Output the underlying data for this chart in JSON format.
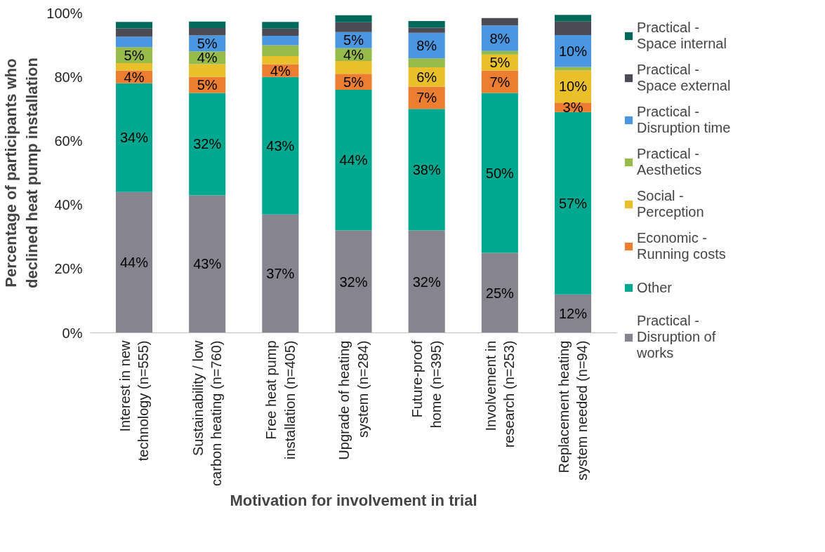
{
  "chart_data": {
    "type": "bar",
    "stacked": true,
    "xlabel": "Motivation for involvement in trial",
    "ylabel": "Percentage of participants who\ndeclined heat pump installation",
    "categories": [
      "Interest in new\ntechnology (n=555)",
      "Sustainability / low\ncarbon heating (n=760)",
      "Free heat pump\ninstallation (n=405)",
      "Upgrade of heating\nsystem (n=284)",
      "Future-proof\nhome (n=395)",
      "Involvement in\nresearch (n=253)",
      "Replacement heating\nsystem needed (n=94)"
    ],
    "ylim": [
      0,
      100
    ],
    "yticks": [
      {
        "value": 0,
        "label": "0%"
      },
      {
        "value": 20,
        "label": "20%"
      },
      {
        "value": 40,
        "label": "40%"
      },
      {
        "value": 60,
        "label": "60%"
      },
      {
        "value": 80,
        "label": "80%"
      },
      {
        "value": 100,
        "label": "100%"
      }
    ],
    "grid": false,
    "legend": "right",
    "series": [
      {
        "name": "Practical -\nDisruption of\nworks",
        "color": "#86858f",
        "values": [
          44,
          43,
          37,
          32,
          32,
          25,
          12
        ],
        "value_labels": [
          "44%",
          "43%",
          "37%",
          "32%",
          "32%",
          "25%",
          "12%"
        ]
      },
      {
        "name": "Other",
        "color": "#00a88f",
        "values": [
          34,
          32,
          43,
          44,
          38,
          50,
          57
        ],
        "value_labels": [
          "34%",
          "32%",
          "43%",
          "44%",
          "38%",
          "50%",
          "57%"
        ]
      },
      {
        "name": "Economic -\nRunning costs",
        "color": "#ed7d31",
        "values": [
          4,
          5,
          4,
          5,
          7,
          7,
          3
        ],
        "value_labels": [
          "4%",
          "5%",
          "4%",
          "5%",
          "7%",
          "7%",
          "3%"
        ]
      },
      {
        "name": "Social -\nPerception",
        "color": "#e9bf2a",
        "values": [
          2.3,
          4,
          2.5,
          4,
          6,
          5,
          10
        ],
        "value_labels": [
          null,
          null,
          null,
          null,
          "6%",
          "5%",
          "10%"
        ]
      },
      {
        "name": "Practical -\nAesthetics",
        "color": "#96bb4a",
        "values": [
          5,
          4,
          3.4,
          4,
          2.8,
          1.1,
          1.1
        ],
        "value_labels": [
          "5%",
          "4%",
          null,
          "4%",
          null,
          null,
          null
        ]
      },
      {
        "name": "Practical -\nDisruption time",
        "color": "#4a96e0",
        "values": [
          3.3,
          5,
          3.0,
          5,
          8,
          8,
          10
        ],
        "value_labels": [
          null,
          "5%",
          null,
          "5%",
          "8%",
          "8%",
          "10%"
        ]
      },
      {
        "name": "Practical -\nSpace external",
        "color": "#4b4a55",
        "values": [
          2.6,
          2.3,
          2.2,
          3.1,
          1.6,
          2.3,
          4.2
        ],
        "value_labels": [
          null,
          null,
          null,
          null,
          null,
          null,
          null
        ]
      },
      {
        "name": "Practical -\nSpace internal",
        "color": "#00695a",
        "values": [
          2.0,
          2.0,
          2.1,
          2.2,
          2.1,
          null,
          2.1
        ],
        "value_labels": [
          null,
          null,
          null,
          null,
          null,
          null,
          null
        ]
      }
    ]
  }
}
